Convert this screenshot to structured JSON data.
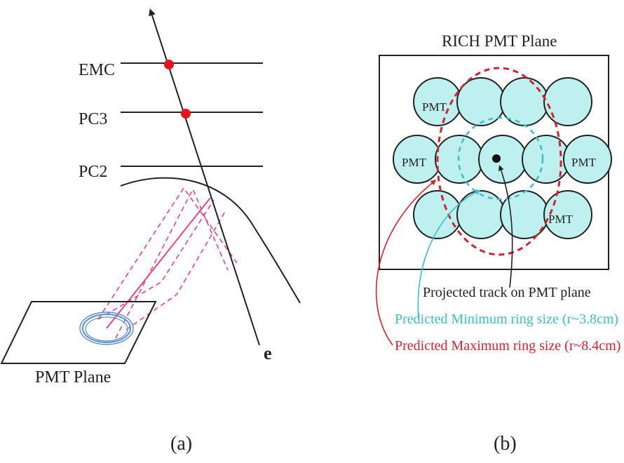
{
  "panel_a": {
    "detector_labels": [
      "EMC",
      "PC3",
      "PC2"
    ],
    "plane_label": "PMT Plane",
    "track_label": "e",
    "caption": "(a)"
  },
  "panel_b": {
    "title": "RICH PMT Plane",
    "pmt_label": "PMT",
    "annotations": {
      "projected_track": "Projected track on PMT plane",
      "min_ring": "Predicted Minimum ring size (r~3.8cm)",
      "max_ring": "Predicted Maximum ring size (r~8.4cm)"
    },
    "caption": "(b)"
  },
  "colors": {
    "line": "#222222",
    "hit": "#e8141b",
    "pmt_fill": "#bff0f0",
    "min_ring": "#3fbcc4",
    "max_ring": "#d4232f",
    "photon": "#e0448a",
    "ring_blue": "#5b8fd0"
  }
}
